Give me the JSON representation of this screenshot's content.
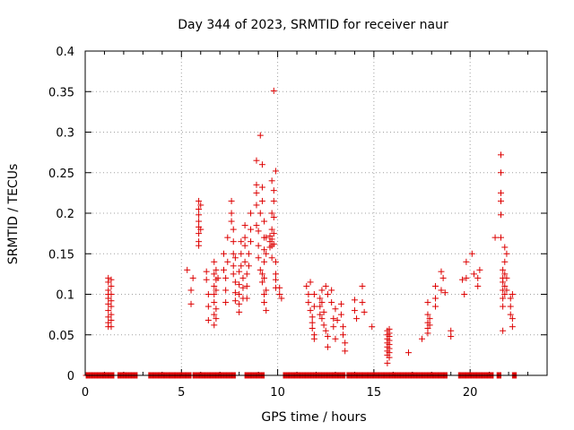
{
  "chart_data": {
    "type": "scatter",
    "title": "Day 344 of 2023, SRMTID for receiver naur",
    "xlabel": "GPS time / hours",
    "ylabel": "SRMTID / TECUs",
    "xlim": [
      0,
      24
    ],
    "ylim": [
      0,
      0.4
    ],
    "x_ticks": [
      0,
      5,
      10,
      15,
      20
    ],
    "x_tick_labels": [
      "0",
      "5",
      "10",
      "15",
      "20"
    ],
    "y_ticks": [
      0,
      0.05,
      0.1,
      0.15,
      0.2,
      0.25,
      0.3,
      0.35,
      0.4
    ],
    "y_tick_labels": [
      "0",
      "0.05",
      "0.1",
      "0.15",
      "0.2",
      "0.25",
      "0.3",
      "0.35",
      "0.4"
    ],
    "grid": true,
    "marker": "+",
    "color": "#dd0000",
    "series": [
      {
        "name": "SRMTID",
        "points": [
          [
            1.2,
            0.12
          ],
          [
            1.2,
            0.115
          ],
          [
            1.2,
            0.105
          ],
          [
            1.2,
            0.1
          ],
          [
            1.2,
            0.095
          ],
          [
            1.2,
            0.088
          ],
          [
            1.2,
            0.08
          ],
          [
            1.2,
            0.072
          ],
          [
            1.2,
            0.065
          ],
          [
            1.2,
            0.06
          ],
          [
            1.35,
            0.118
          ],
          [
            1.35,
            0.11
          ],
          [
            1.35,
            0.1
          ],
          [
            1.35,
            0.092
          ],
          [
            1.35,
            0.085
          ],
          [
            1.35,
            0.075
          ],
          [
            1.35,
            0.068
          ],
          [
            1.35,
            0.06
          ],
          [
            5.3,
            0.13
          ],
          [
            5.6,
            0.12
          ],
          [
            5.5,
            0.105
          ],
          [
            5.5,
            0.088
          ],
          [
            5.9,
            0.215
          ],
          [
            5.9,
            0.205
          ],
          [
            5.9,
            0.198
          ],
          [
            5.9,
            0.19
          ],
          [
            5.9,
            0.183
          ],
          [
            5.9,
            0.175
          ],
          [
            5.9,
            0.165
          ],
          [
            5.9,
            0.16
          ],
          [
            6.0,
            0.21
          ],
          [
            6.0,
            0.18
          ],
          [
            6.3,
            0.128
          ],
          [
            6.3,
            0.118
          ],
          [
            6.4,
            0.1
          ],
          [
            6.4,
            0.085
          ],
          [
            6.4,
            0.068
          ],
          [
            6.7,
            0.14
          ],
          [
            6.7,
            0.125
          ],
          [
            6.7,
            0.11
          ],
          [
            6.7,
            0.1
          ],
          [
            6.7,
            0.09
          ],
          [
            6.7,
            0.075
          ],
          [
            6.7,
            0.062
          ],
          [
            6.8,
            0.13
          ],
          [
            6.8,
            0.118
          ],
          [
            6.8,
            0.105
          ],
          [
            6.8,
            0.082
          ],
          [
            6.8,
            0.07
          ],
          [
            6.9,
            0.12
          ],
          [
            7.2,
            0.15
          ],
          [
            7.2,
            0.13
          ],
          [
            7.3,
            0.12
          ],
          [
            7.3,
            0.105
          ],
          [
            7.3,
            0.09
          ],
          [
            7.4,
            0.17
          ],
          [
            7.4,
            0.14
          ],
          [
            7.6,
            0.215
          ],
          [
            7.6,
            0.2
          ],
          [
            7.6,
            0.19
          ],
          [
            7.7,
            0.18
          ],
          [
            7.7,
            0.165
          ],
          [
            7.7,
            0.15
          ],
          [
            7.7,
            0.135
          ],
          [
            7.7,
            0.125
          ],
          [
            7.8,
            0.145
          ],
          [
            7.8,
            0.115
          ],
          [
            7.8,
            0.102
          ],
          [
            7.8,
            0.092
          ],
          [
            8.0,
            0.128
          ],
          [
            8.0,
            0.112
          ],
          [
            8.0,
            0.1
          ],
          [
            8.0,
            0.088
          ],
          [
            8.0,
            0.078
          ],
          [
            8.1,
            0.165
          ],
          [
            8.1,
            0.15
          ],
          [
            8.1,
            0.135
          ],
          [
            8.2,
            0.12
          ],
          [
            8.2,
            0.108
          ],
          [
            8.2,
            0.095
          ],
          [
            8.3,
            0.185
          ],
          [
            8.3,
            0.17
          ],
          [
            8.3,
            0.16
          ],
          [
            8.3,
            0.14
          ],
          [
            8.4,
            0.125
          ],
          [
            8.4,
            0.11
          ],
          [
            8.4,
            0.095
          ],
          [
            8.5,
            0.15
          ],
          [
            8.5,
            0.135
          ],
          [
            8.6,
            0.2
          ],
          [
            8.6,
            0.18
          ],
          [
            8.6,
            0.165
          ],
          [
            8.9,
            0.265
          ],
          [
            8.9,
            0.235
          ],
          [
            8.9,
            0.225
          ],
          [
            8.9,
            0.21
          ],
          [
            8.9,
            0.185
          ],
          [
            9.0,
            0.178
          ],
          [
            9.0,
            0.16
          ],
          [
            9.0,
            0.145
          ],
          [
            9.1,
            0.296
          ],
          [
            9.1,
            0.2
          ],
          [
            9.1,
            0.13
          ],
          [
            9.2,
            0.26
          ],
          [
            9.2,
            0.232
          ],
          [
            9.2,
            0.215
          ],
          [
            9.2,
            0.125
          ],
          [
            9.2,
            0.115
          ],
          [
            9.3,
            0.19
          ],
          [
            9.3,
            0.17
          ],
          [
            9.3,
            0.155
          ],
          [
            9.3,
            0.14
          ],
          [
            9.3,
            0.12
          ],
          [
            9.3,
            0.1
          ],
          [
            9.3,
            0.09
          ],
          [
            9.4,
            0.08
          ],
          [
            9.4,
            0.105
          ],
          [
            9.4,
            0.15
          ],
          [
            9.4,
            0.17
          ],
          [
            9.6,
            0.165
          ],
          [
            9.6,
            0.172
          ],
          [
            9.6,
            0.158
          ],
          [
            9.7,
            0.24
          ],
          [
            9.7,
            0.2
          ],
          [
            9.7,
            0.18
          ],
          [
            9.7,
            0.168
          ],
          [
            9.7,
            0.16
          ],
          [
            9.7,
            0.145
          ],
          [
            9.8,
            0.351
          ],
          [
            9.8,
            0.228
          ],
          [
            9.8,
            0.215
          ],
          [
            9.8,
            0.195
          ],
          [
            9.8,
            0.175
          ],
          [
            9.8,
            0.162
          ],
          [
            9.9,
            0.252
          ],
          [
            9.9,
            0.14
          ],
          [
            9.9,
            0.125
          ],
          [
            9.9,
            0.118
          ],
          [
            9.9,
            0.108
          ],
          [
            10.1,
            0.108
          ],
          [
            10.1,
            0.1
          ],
          [
            10.2,
            0.095
          ],
          [
            11.5,
            0.11
          ],
          [
            11.6,
            0.1
          ],
          [
            11.6,
            0.09
          ],
          [
            11.7,
            0.115
          ],
          [
            11.7,
            0.08
          ],
          [
            11.8,
            0.072
          ],
          [
            11.8,
            0.065
          ],
          [
            11.8,
            0.058
          ],
          [
            11.9,
            0.1
          ],
          [
            11.9,
            0.085
          ],
          [
            11.9,
            0.05
          ],
          [
            11.9,
            0.045
          ],
          [
            12.2,
            0.095
          ],
          [
            12.2,
            0.085
          ],
          [
            12.2,
            0.075
          ],
          [
            12.3,
            0.105
          ],
          [
            12.3,
            0.09
          ],
          [
            12.3,
            0.07
          ],
          [
            12.4,
            0.078
          ],
          [
            12.4,
            0.062
          ],
          [
            12.5,
            0.11
          ],
          [
            12.5,
            0.055
          ],
          [
            12.6,
            0.1
          ],
          [
            12.6,
            0.048
          ],
          [
            12.6,
            0.035
          ],
          [
            12.8,
            0.105
          ],
          [
            12.8,
            0.09
          ],
          [
            12.9,
            0.07
          ],
          [
            12.9,
            0.06
          ],
          [
            13.0,
            0.082
          ],
          [
            13.0,
            0.045
          ],
          [
            13.1,
            0.068
          ],
          [
            13.3,
            0.088
          ],
          [
            13.3,
            0.075
          ],
          [
            13.4,
            0.06
          ],
          [
            13.4,
            0.05
          ],
          [
            13.5,
            0.04
          ],
          [
            13.5,
            0.03
          ],
          [
            14.0,
            0.093
          ],
          [
            14.0,
            0.08
          ],
          [
            14.1,
            0.07
          ],
          [
            14.4,
            0.11
          ],
          [
            14.4,
            0.09
          ],
          [
            14.5,
            0.078
          ],
          [
            14.9,
            0.06
          ],
          [
            15.7,
            0.055
          ],
          [
            15.7,
            0.05
          ],
          [
            15.7,
            0.045
          ],
          [
            15.7,
            0.04
          ],
          [
            15.7,
            0.035
          ],
          [
            15.7,
            0.03
          ],
          [
            15.7,
            0.025
          ],
          [
            15.7,
            0.015
          ],
          [
            15.8,
            0.057
          ],
          [
            15.8,
            0.052
          ],
          [
            15.8,
            0.048
          ],
          [
            15.8,
            0.043
          ],
          [
            15.8,
            0.038
          ],
          [
            15.8,
            0.033
          ],
          [
            15.8,
            0.028
          ],
          [
            15.8,
            0.022
          ],
          [
            16.8,
            0.028
          ],
          [
            17.5,
            0.045
          ],
          [
            17.8,
            0.09
          ],
          [
            17.8,
            0.075
          ],
          [
            17.8,
            0.065
          ],
          [
            17.8,
            0.058
          ],
          [
            17.8,
            0.052
          ],
          [
            17.9,
            0.07
          ],
          [
            17.9,
            0.062
          ],
          [
            18.2,
            0.11
          ],
          [
            18.2,
            0.095
          ],
          [
            18.2,
            0.085
          ],
          [
            18.5,
            0.128
          ],
          [
            18.5,
            0.105
          ],
          [
            18.6,
            0.12
          ],
          [
            18.7,
            0.102
          ],
          [
            19.0,
            0.055
          ],
          [
            19.0,
            0.048
          ],
          [
            19.6,
            0.118
          ],
          [
            19.7,
            0.1
          ],
          [
            19.8,
            0.14
          ],
          [
            19.8,
            0.12
          ],
          [
            20.1,
            0.15
          ],
          [
            20.2,
            0.125
          ],
          [
            20.4,
            0.12
          ],
          [
            20.4,
            0.11
          ],
          [
            20.5,
            0.13
          ],
          [
            21.3,
            0.17
          ],
          [
            21.6,
            0.272
          ],
          [
            21.6,
            0.25
          ],
          [
            21.6,
            0.225
          ],
          [
            21.6,
            0.215
          ],
          [
            21.6,
            0.198
          ],
          [
            21.6,
            0.17
          ],
          [
            21.7,
            0.13
          ],
          [
            21.7,
            0.12
          ],
          [
            21.7,
            0.115
          ],
          [
            21.7,
            0.105
          ],
          [
            21.7,
            0.095
          ],
          [
            21.7,
            0.085
          ],
          [
            21.8,
            0.158
          ],
          [
            21.8,
            0.14
          ],
          [
            21.8,
            0.125
          ],
          [
            21.8,
            0.11
          ],
          [
            21.8,
            0.1
          ],
          [
            21.9,
            0.15
          ],
          [
            21.9,
            0.12
          ],
          [
            21.9,
            0.105
          ],
          [
            21.7,
            0.055
          ],
          [
            22.1,
            0.095
          ],
          [
            22.1,
            0.085
          ],
          [
            22.1,
            0.075
          ],
          [
            22.2,
            0.1
          ],
          [
            22.2,
            0.07
          ],
          [
            22.2,
            0.06
          ]
        ],
        "zero_intervals": [
          [
            0.05,
            1.5
          ],
          [
            1.7,
            2.7
          ],
          [
            3.3,
            5.5
          ],
          [
            5.6,
            7.8
          ],
          [
            8.3,
            9.3
          ],
          [
            10.3,
            13.5
          ],
          [
            13.6,
            18.8
          ],
          [
            19.4,
            21.2
          ],
          [
            21.4,
            21.6
          ],
          [
            22.2,
            22.4
          ]
        ]
      }
    ]
  }
}
